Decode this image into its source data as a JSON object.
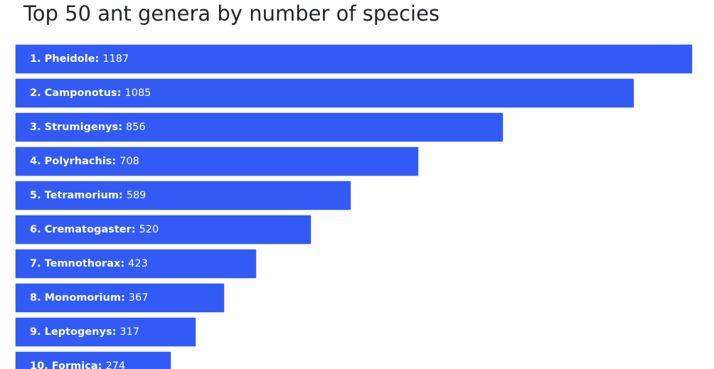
{
  "title": "Top 50 ant genera by number of species",
  "colors": {
    "bar": "#325bf6",
    "text": "#ffffff",
    "title": "#212529"
  },
  "chart_data": {
    "type": "bar",
    "orientation": "horizontal",
    "title": "Top 50 ant genera by number of species",
    "categories": [
      "1. Pheidole:",
      "2. Camponotus:",
      "3. Strumigenys:",
      "4. Polyrhachis:",
      "5. Tetramorium:",
      "6. Crematogaster:",
      "7. Temnothorax:",
      "8. Monomorium:",
      "9. Leptogenys:",
      "10. Formica:"
    ],
    "values": [
      1187,
      1085,
      856,
      708,
      589,
      520,
      423,
      367,
      317,
      274
    ],
    "xlim": [
      0,
      1187
    ],
    "grid": false
  }
}
